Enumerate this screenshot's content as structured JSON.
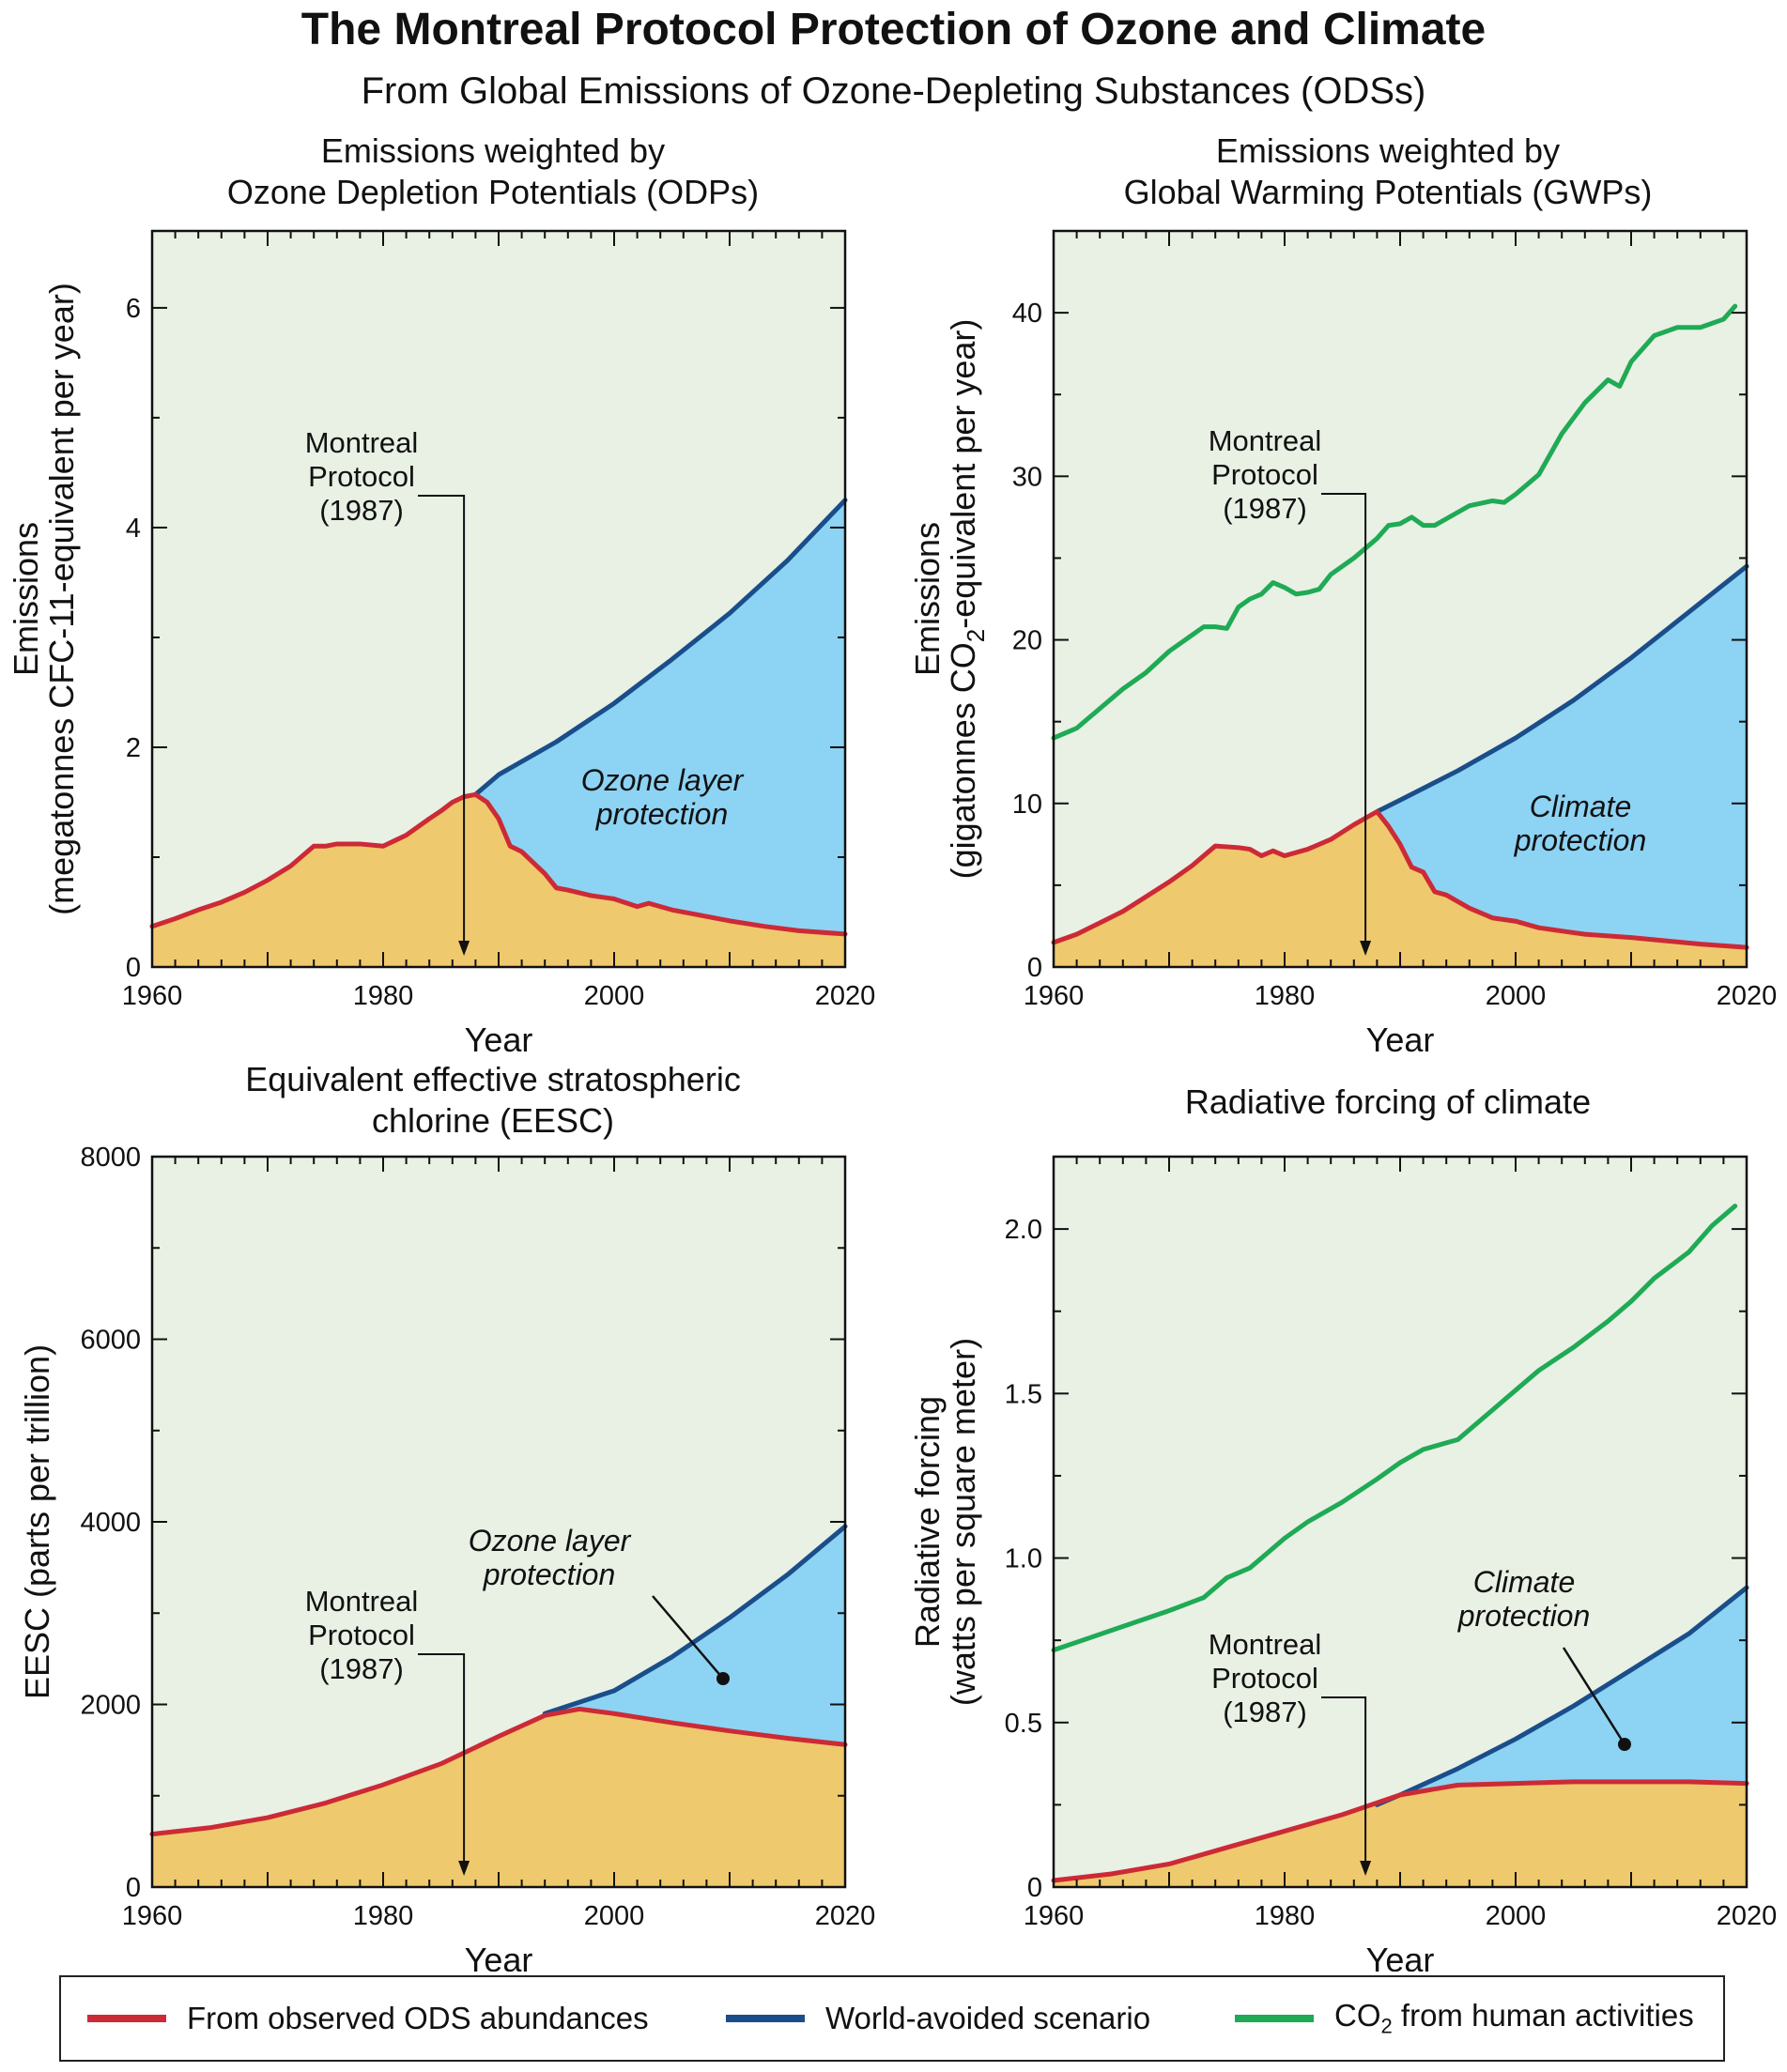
{
  "title": "The Montreal Protocol Protection of Ozone and Climate",
  "subtitle": "From Global Emissions of Ozone-Depleting Substances (ODSs)",
  "colors": {
    "observed": "#cc2a36",
    "world_avoided": "#1a4e8a",
    "co2": "#1faa55",
    "observed_fill": "#efc96d",
    "protection_fill": "#8dd3f4",
    "background_fill": "#e9f0e4"
  },
  "legend": {
    "observed": "From observed ODS abundances",
    "world_avoided": "World-avoided scenario",
    "co2_prefix": "CO",
    "co2_sub": "2",
    "co2_suffix": " from human activities"
  },
  "chart_data": [
    {
      "id": "odp",
      "type": "area",
      "title_line1": "Emissions weighted by",
      "title_line2": "Ozone Depletion Potentials (ODPs)",
      "xlabel": "Year",
      "ylabel_line1": "Emissions",
      "ylabel_line2": "(megatonnes CFC-11-equivalent per year)",
      "xlim": [
        1960,
        2020
      ],
      "ylim": [
        0,
        6.7
      ],
      "xticks": [
        1960,
        1980,
        2000,
        2020
      ],
      "yticks": [
        0,
        2,
        4,
        6
      ],
      "annotation_mp": [
        "Montreal",
        "Protocol",
        "(1987)"
      ],
      "annotation_protection": [
        "Ozone layer",
        "protection"
      ],
      "series": [
        {
          "name": "From observed ODS abundances",
          "key": "observed",
          "x": [
            1960,
            1962,
            1964,
            1966,
            1968,
            1970,
            1972,
            1974,
            1975,
            1976,
            1978,
            1980,
            1981,
            1982,
            1984,
            1985,
            1986,
            1987,
            1988,
            1989,
            1990,
            1991,
            1992,
            1994,
            1995,
            1996,
            1998,
            2000,
            2002,
            2003,
            2005,
            2007,
            2010,
            2013,
            2016,
            2020
          ],
          "y": [
            0.37,
            0.44,
            0.52,
            0.59,
            0.68,
            0.79,
            0.92,
            1.1,
            1.1,
            1.12,
            1.12,
            1.1,
            1.15,
            1.2,
            1.35,
            1.42,
            1.5,
            1.55,
            1.57,
            1.5,
            1.35,
            1.1,
            1.05,
            0.85,
            0.72,
            0.7,
            0.65,
            0.62,
            0.55,
            0.58,
            0.52,
            0.48,
            0.42,
            0.37,
            0.33,
            0.3
          ]
        },
        {
          "name": "World-avoided scenario",
          "key": "world_avoided",
          "x": [
            1988,
            1990,
            1995,
            2000,
            2005,
            2010,
            2015,
            2020
          ],
          "y": [
            1.57,
            1.75,
            2.05,
            2.4,
            2.8,
            3.22,
            3.7,
            4.25
          ]
        }
      ]
    },
    {
      "id": "gwp",
      "type": "area",
      "title_line1": "Emissions weighted by",
      "title_line2": "Global Warming Potentials (GWPs)",
      "xlabel": "Year",
      "ylabel_line1": "Emissions",
      "ylabel_line2_prefix": "(gigatonnes CO",
      "ylabel_line2_sub": "2",
      "ylabel_line2_suffix": "-equivalent per year)",
      "xlim": [
        1960,
        2020
      ],
      "ylim": [
        0,
        45
      ],
      "xticks": [
        1960,
        1980,
        2000,
        2020
      ],
      "yticks": [
        0,
        10,
        20,
        30,
        40
      ],
      "annotation_mp": [
        "Montreal",
        "Protocol",
        "(1987)"
      ],
      "annotation_protection": [
        "Climate",
        "protection"
      ],
      "series": [
        {
          "name": "From observed ODS abundances",
          "key": "observed",
          "x": [
            1960,
            1962,
            1964,
            1966,
            1968,
            1970,
            1972,
            1974,
            1976,
            1977,
            1978,
            1979,
            1980,
            1982,
            1984,
            1986,
            1987,
            1988,
            1989,
            1990,
            1991,
            1992,
            1993,
            1994,
            1996,
            1998,
            2000,
            2002,
            2004,
            2006,
            2008,
            2010,
            2013,
            2016,
            2020
          ],
          "y": [
            1.5,
            2.0,
            2.7,
            3.4,
            4.3,
            5.2,
            6.2,
            7.4,
            7.3,
            7.2,
            6.8,
            7.1,
            6.8,
            7.2,
            7.8,
            8.7,
            9.1,
            9.5,
            8.6,
            7.5,
            6.1,
            5.8,
            4.6,
            4.4,
            3.6,
            3.0,
            2.8,
            2.4,
            2.2,
            2.0,
            1.9,
            1.8,
            1.6,
            1.4,
            1.2
          ]
        },
        {
          "name": "World-avoided scenario",
          "key": "world_avoided",
          "x": [
            1988,
            1990,
            1995,
            2000,
            2005,
            2010,
            2015,
            2020
          ],
          "y": [
            9.5,
            10.2,
            12.0,
            14.0,
            16.3,
            18.9,
            21.7,
            24.5
          ]
        },
        {
          "name": "CO2 from human activities",
          "key": "co2",
          "x": [
            1960,
            1962,
            1964,
            1966,
            1968,
            1970,
            1972,
            1973,
            1974,
            1975,
            1976,
            1977,
            1978,
            1979,
            1980,
            1981,
            1982,
            1983,
            1984,
            1986,
            1988,
            1989,
            1990,
            1991,
            1992,
            1993,
            1994,
            1996,
            1998,
            1999,
            2000,
            2002,
            2004,
            2006,
            2008,
            2009,
            2010,
            2012,
            2014,
            2016,
            2018,
            2019
          ],
          "y": [
            14.0,
            14.6,
            15.8,
            17.0,
            18.0,
            19.3,
            20.3,
            20.8,
            20.8,
            20.7,
            22.0,
            22.5,
            22.8,
            23.5,
            23.2,
            22.8,
            22.9,
            23.1,
            24.0,
            25.0,
            26.2,
            27.0,
            27.1,
            27.5,
            27.0,
            27.0,
            27.4,
            28.2,
            28.5,
            28.4,
            28.9,
            30.1,
            32.6,
            34.5,
            35.9,
            35.5,
            37.0,
            38.6,
            39.1,
            39.1,
            39.6,
            40.4
          ]
        }
      ]
    },
    {
      "id": "eesc",
      "type": "area",
      "title_line1": "Equivalent effective stratospheric",
      "title_line2": "chlorine (EESC)",
      "xlabel": "Year",
      "ylabel_line1": "EESC (parts per trillion)",
      "xlim": [
        1960,
        2020
      ],
      "ylim": [
        0,
        8000
      ],
      "xticks": [
        1960,
        1980,
        2000,
        2020
      ],
      "yticks": [
        0,
        2000,
        4000,
        6000,
        8000
      ],
      "annotation_mp": [
        "Montreal",
        "Protocol",
        "(1987)"
      ],
      "annotation_protection": [
        "Ozone layer",
        "protection"
      ],
      "series": [
        {
          "name": "From observed ODS abundances",
          "key": "observed",
          "x": [
            1960,
            1965,
            1970,
            1975,
            1980,
            1985,
            1990,
            1994,
            1997,
            2000,
            2005,
            2010,
            2015,
            2020
          ],
          "y": [
            580,
            650,
            760,
            920,
            1120,
            1350,
            1650,
            1880,
            1950,
            1900,
            1800,
            1710,
            1630,
            1560
          ]
        },
        {
          "name": "World-avoided scenario",
          "key": "world_avoided",
          "x": [
            1994,
            2000,
            2005,
            2010,
            2015,
            2020
          ],
          "y": [
            1900,
            2150,
            2520,
            2950,
            3420,
            3950
          ]
        }
      ]
    },
    {
      "id": "rf",
      "type": "area",
      "title_line1": "Radiative forcing of climate",
      "xlabel": "Year",
      "ylabel_line1": "Radiative forcing",
      "ylabel_line2": "(watts per square meter)",
      "xlim": [
        1960,
        2020
      ],
      "ylim": [
        0,
        2.22
      ],
      "xticks": [
        1960,
        1980,
        2000,
        2020
      ],
      "yticks": [
        0,
        0.5,
        1.0,
        1.5,
        2.0
      ],
      "ytick_labels": [
        "0",
        "0.5",
        "1.0",
        "1.5",
        "2.0"
      ],
      "annotation_mp": [
        "Montreal",
        "Protocol",
        "(1987)"
      ],
      "annotation_protection": [
        "Climate",
        "protection"
      ],
      "series": [
        {
          "name": "From observed ODS abundances",
          "key": "observed",
          "x": [
            1960,
            1965,
            1970,
            1975,
            1980,
            1985,
            1990,
            1995,
            2000,
            2005,
            2010,
            2015,
            2020
          ],
          "y": [
            0.02,
            0.04,
            0.07,
            0.12,
            0.17,
            0.22,
            0.28,
            0.31,
            0.315,
            0.32,
            0.32,
            0.32,
            0.315
          ]
        },
        {
          "name": "World-avoided scenario",
          "key": "world_avoided",
          "x": [
            1988,
            1990,
            1995,
            2000,
            2005,
            2010,
            2015,
            2020
          ],
          "y": [
            0.25,
            0.28,
            0.36,
            0.45,
            0.55,
            0.66,
            0.77,
            0.91
          ]
        },
        {
          "name": "CO2 from human activities",
          "key": "co2",
          "x": [
            1960,
            1965,
            1970,
            1973,
            1975,
            1977,
            1980,
            1982,
            1985,
            1988,
            1990,
            1992,
            1995,
            1998,
            2000,
            2002,
            2005,
            2008,
            2010,
            2012,
            2015,
            2017,
            2019
          ],
          "y": [
            0.72,
            0.78,
            0.84,
            0.88,
            0.94,
            0.97,
            1.06,
            1.11,
            1.17,
            1.24,
            1.29,
            1.33,
            1.36,
            1.45,
            1.51,
            1.57,
            1.64,
            1.72,
            1.78,
            1.85,
            1.93,
            2.01,
            2.07
          ]
        }
      ]
    }
  ]
}
